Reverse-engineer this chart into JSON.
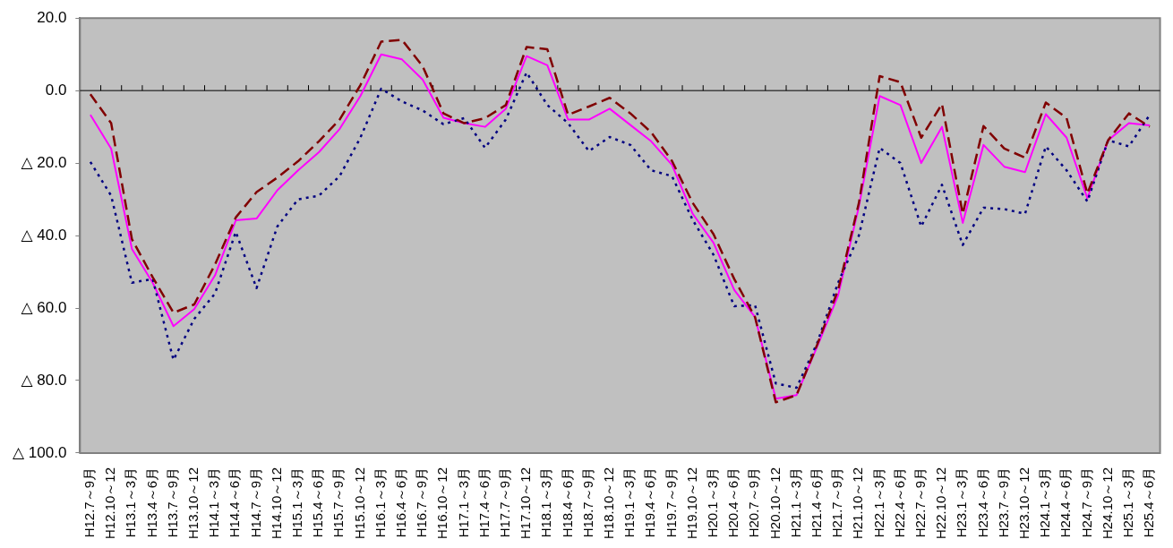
{
  "chart_data": {
    "type": "line",
    "categories": [
      "H12.7～9月",
      "H12.10～12",
      "H13.1～3月",
      "H13.4～6月",
      "H13.7～9月",
      "H13.10～12",
      "H14.1～3月",
      "H14.4～6月",
      "H14.7～9月",
      "H14.10～12",
      "H15.1～3月",
      "H15.4～6月",
      "H15.7～9月",
      "H15.10～12",
      "H16.1～3月",
      "H16.4～6月",
      "H16.7～9月",
      "H16.10～12",
      "H17.1～3月",
      "H17.4～6月",
      "H17.7～9月",
      "H17.10～12",
      "H18.1～3月",
      "H18.4～6月",
      "H18.7～9月",
      "H18.10～12",
      "H19.1～3月",
      "H19.4～6月",
      "H19.7～9月",
      "H19.10～12",
      "H20.1～3月",
      "H20.4～6月",
      "H20.7～9月",
      "H20.10～12",
      "H21.1～3月",
      "H21.4～6月",
      "H21.7～9月",
      "H21.10～12",
      "H22.1～3月",
      "H22.4～6月",
      "H22.7～9月",
      "H22.10～12",
      "H23.1～3月",
      "H23.4～6月",
      "H23.7～9月",
      "H23.10～12",
      "H24.1～3月",
      "H24.4～6月",
      "H24.7～9月",
      "H24.10～12",
      "H25.1～3月",
      "H25.4～6月"
    ],
    "series": [
      {
        "color": "#800000",
        "line_style": "dashed",
        "values": [
          -1,
          -9,
          -41,
          -51.5,
          -61.3,
          -59,
          -48,
          -35,
          -28,
          -24,
          -19.5,
          -14,
          -8,
          1.5,
          13.5,
          14,
          6.7,
          -6.3,
          -9,
          -7.6,
          -4,
          12,
          11.4,
          -6.7,
          -4.4,
          -2,
          -6.3,
          -11.5,
          -19.4,
          -31,
          -39.6,
          -52,
          -62.5,
          -86,
          -84,
          -70,
          -55,
          -31,
          4,
          2.3,
          -13,
          -3.7,
          -34,
          -9.8,
          -16,
          -18.5,
          -3.3,
          -7.6,
          -28.4,
          -13.7,
          -6.3,
          -10
        ]
      },
      {
        "color": "#000080",
        "line_style": "dotted",
        "values": [
          -19.7,
          -29,
          -53,
          -52,
          -74.3,
          -63,
          -56,
          -39,
          -54.5,
          -37.5,
          -30,
          -29,
          -23.6,
          -13,
          0.5,
          -3,
          -5.5,
          -9.3,
          -7.6,
          -15.8,
          -8,
          5,
          -4,
          -9,
          -16.7,
          -12.8,
          -15,
          -22,
          -23.6,
          -35.7,
          -45.3,
          -59.5,
          -59.2,
          -80.8,
          -82,
          -69.5,
          -53,
          -40,
          -15.8,
          -20,
          -37.5,
          -26,
          -42.6,
          -32.3,
          -32.7,
          -34,
          -15.4,
          -22,
          -30.6,
          -13.7,
          -15.4,
          -6.7
        ]
      },
      {
        "color": "#ff00ff",
        "line_style": "solid",
        "values": [
          -6.7,
          -16,
          -43.7,
          -53,
          -65,
          -60.3,
          -51,
          -35.8,
          -35.3,
          -27.5,
          -22,
          -17,
          -10.6,
          -1.5,
          10,
          8.6,
          3,
          -7.5,
          -9,
          -10,
          -5,
          9.5,
          7,
          -8,
          -8,
          -5,
          -9.5,
          -14,
          -20.5,
          -34,
          -42,
          -55,
          -62.5,
          -85,
          -84,
          -70.5,
          -56.5,
          -32,
          -1.5,
          -4,
          -20,
          -10,
          -36.5,
          -15,
          -21,
          -22.5,
          -6.5,
          -13,
          -29.7,
          -13.7,
          -9,
          -9.6
        ]
      }
    ],
    "ylim": [
      -100,
      20
    ],
    "yticks": [
      {
        "value": -100,
        "label": "△ 100.0"
      },
      {
        "value": -80,
        "label": "△ 80.0"
      },
      {
        "value": -60,
        "label": "△ 60.0"
      },
      {
        "value": -40,
        "label": "△ 40.0"
      },
      {
        "value": -20,
        "label": "△ 20.0"
      },
      {
        "value": 0,
        "label": "0.0"
      },
      {
        "value": 20,
        "label": "20.0"
      }
    ]
  }
}
